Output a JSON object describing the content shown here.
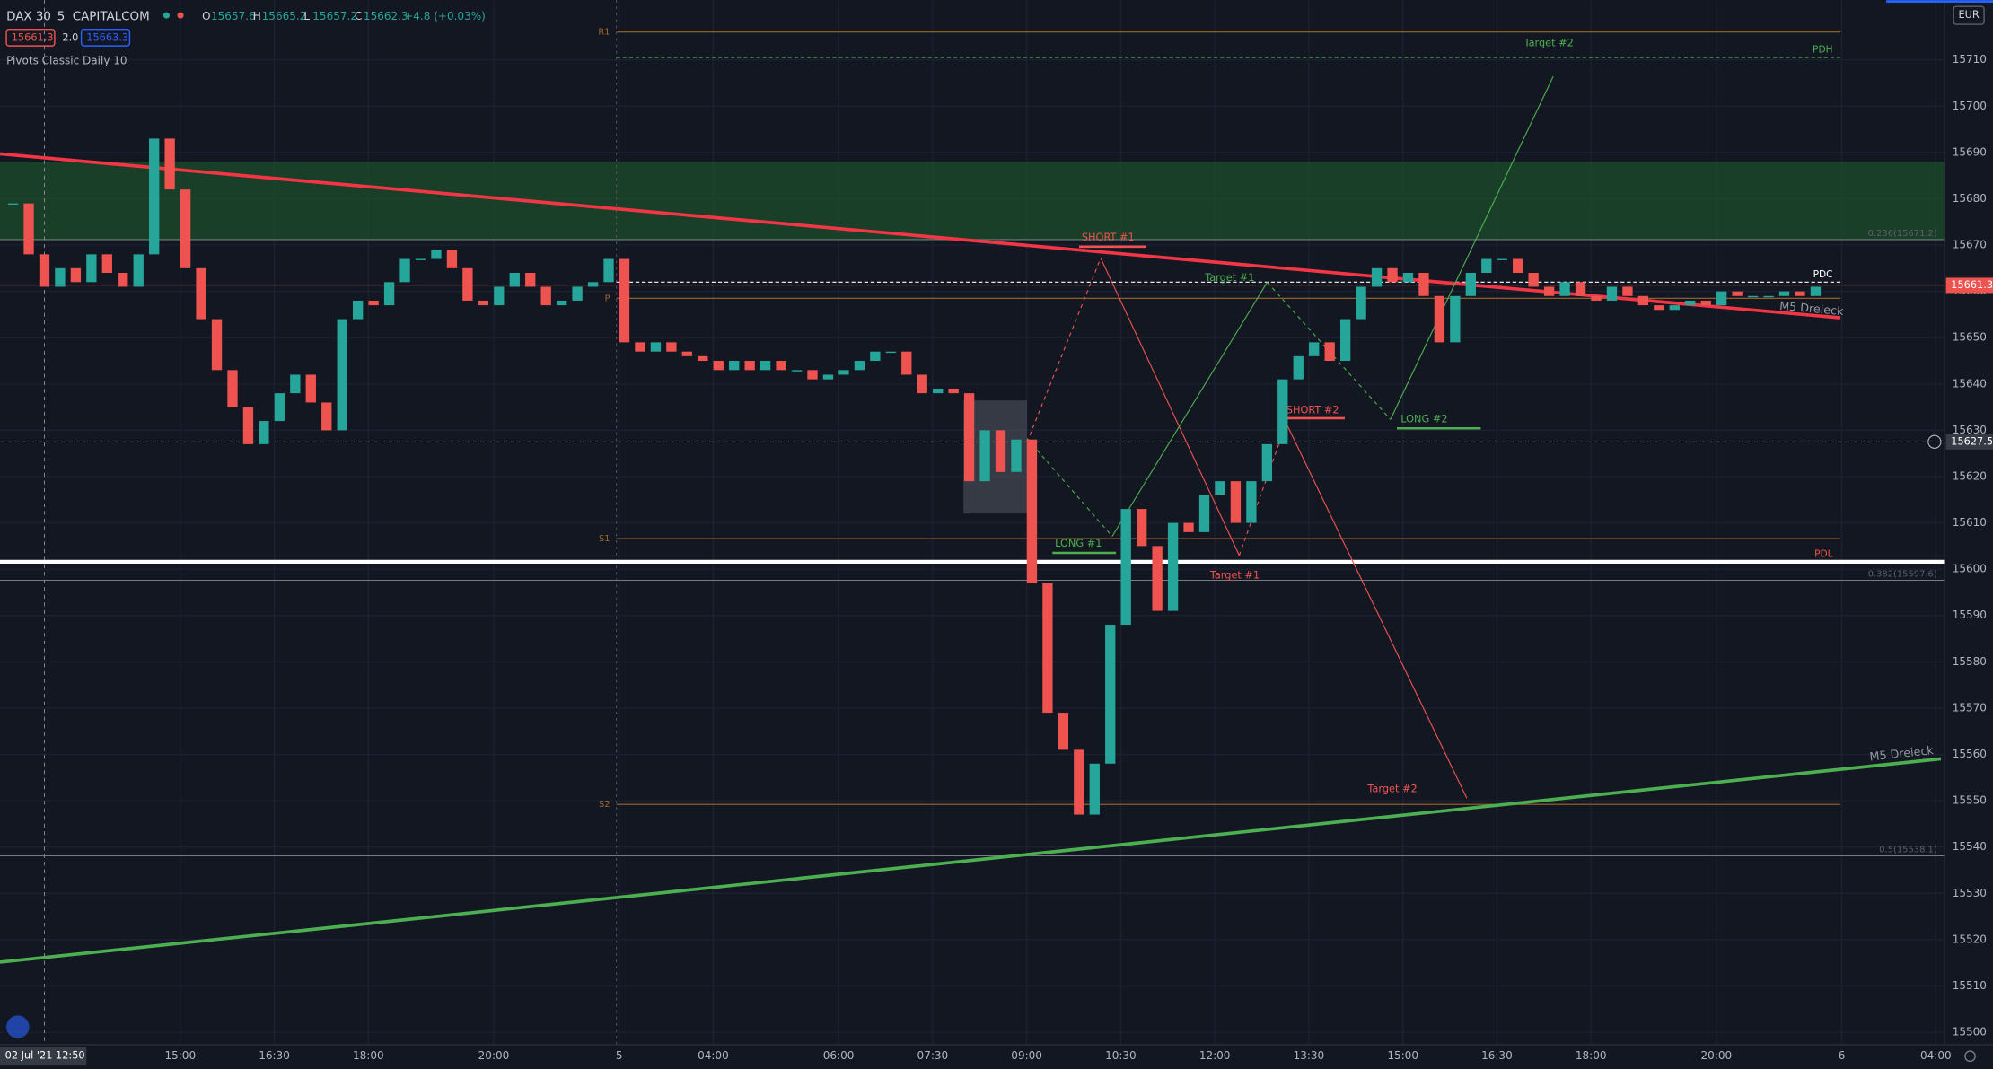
{
  "chart_data": {
    "type": "candlestick",
    "symbol": "DAX 30",
    "interval": "5",
    "exchange": "CAPITALCOM",
    "ohlc_legend": [
      {
        "label": "O",
        "value": 15657.6
      },
      {
        "label": "H",
        "value": 15665.2
      },
      {
        "label": "L",
        "value": 15657.2
      },
      {
        "label": "C",
        "value": 15662.3
      }
    ],
    "change": "+4.8 (+0.03%)",
    "bid": 15661.3,
    "spread": {
      "value": 2,
      "label": "2.0"
    },
    "ask": 15663.3,
    "indicator": "Pivots Classic Daily 10",
    "currency": "EUR",
    "last_price": 15661.3,
    "crosshair_price": 15627.5,
    "crosshair_x": {
      "value": 0,
      "label": "02 Jul '21 12:50"
    },
    "xlim": [
      -8.5,
      363.7
    ],
    "ylim": [
      15497.3,
      15722.9
    ],
    "xticks": [
      {
        "value": 26,
        "label": "15:00"
      },
      {
        "value": 44,
        "label": "16:30"
      },
      {
        "value": 62,
        "label": "18:00"
      },
      {
        "value": 86,
        "label": "20:00"
      },
      {
        "value": 110,
        "label": "5"
      },
      {
        "value": 128,
        "label": "04:00"
      },
      {
        "value": 152,
        "label": "06:00"
      },
      {
        "value": 170,
        "label": "07:30"
      },
      {
        "value": 188,
        "label": "09:00"
      },
      {
        "value": 206,
        "label": "10:30"
      },
      {
        "value": 224,
        "label": "12:00"
      },
      {
        "value": 242,
        "label": "13:30"
      },
      {
        "value": 260,
        "label": "15:00"
      },
      {
        "value": 278,
        "label": "16:30"
      },
      {
        "value": 296,
        "label": "18:00"
      },
      {
        "value": 320,
        "label": "20:00"
      },
      {
        "value": 344,
        "label": "6"
      },
      {
        "value": 362,
        "label": "04:00"
      }
    ],
    "yticks": [
      15500,
      15510,
      15520,
      15530,
      15540,
      15550,
      15560,
      15570,
      15580,
      15590,
      15600,
      15610,
      15620,
      15630,
      15640,
      15650,
      15660,
      15670,
      15680,
      15690,
      15700,
      15710
    ],
    "up_color": "#26a69a",
    "down_color": "#ef5350",
    "candles": {
      "x": [
        -6,
        -3,
        0,
        3,
        6,
        9,
        12,
        15,
        18,
        21,
        24,
        27,
        30,
        33,
        36,
        39,
        42,
        45,
        48,
        51,
        54,
        57,
        60,
        63,
        66,
        69,
        72,
        75,
        78,
        81,
        84,
        87,
        90,
        93,
        96,
        99,
        102,
        105,
        108,
        111,
        114,
        117,
        120,
        123,
        126,
        129,
        132,
        135,
        138,
        141,
        144,
        147,
        150,
        153,
        156,
        159,
        162,
        165,
        168,
        171,
        174,
        177,
        180,
        183,
        186,
        189,
        192,
        195,
        198,
        201,
        204,
        207,
        210,
        213,
        216,
        219,
        222,
        225,
        228,
        231,
        234,
        237,
        240,
        243,
        246,
        249,
        252,
        255,
        258,
        261,
        264,
        267,
        270,
        273,
        276,
        279,
        282,
        285,
        288,
        291,
        294,
        297,
        300,
        303,
        306,
        309,
        312,
        315,
        318,
        321,
        324,
        327,
        330,
        333,
        336,
        339
      ],
      "close": [
        15679,
        15668,
        15661,
        15665,
        15662,
        15668,
        15664,
        15661,
        15668,
        15693,
        15682,
        15665,
        15654,
        15643,
        15635,
        15627,
        15632,
        15638,
        15642,
        15636,
        15630,
        15654,
        15658,
        15657,
        15662,
        15667,
        15667,
        15669,
        15665,
        15658,
        15657,
        15661,
        15664,
        15661,
        15657,
        15658,
        15661,
        15662,
        15667,
        15649,
        15647,
        15649,
        15647,
        15646,
        15645,
        15643,
        15645,
        15643,
        15645,
        15643,
        15643,
        15641,
        15642,
        15643,
        15645,
        15647,
        15647,
        15642,
        15638,
        15639,
        15638,
        15619,
        15630,
        15621,
        15628,
        15597,
        15569,
        15561,
        15547,
        15558,
        15588,
        15613,
        15605,
        15591,
        15610,
        15608,
        15616,
        15619,
        15610,
        15619,
        15627,
        15641,
        15646,
        15649,
        15645,
        15654,
        15661,
        15665,
        15662,
        15664,
        15659,
        15649,
        15659,
        15664,
        15667,
        15667,
        15664,
        15661,
        15659,
        15662,
        15659,
        15658,
        15661,
        15659,
        15657,
        15656,
        15657,
        15658,
        15657,
        15660,
        15659,
        15659,
        15659,
        15660,
        15659,
        15661
      ]
    },
    "zone": [
      15671,
      15688
    ],
    "pivots": [
      {
        "label": "R1",
        "value": 15716
      },
      {
        "label": "P",
        "value": 15658.5
      },
      {
        "label": "S1",
        "value": 15606.6
      },
      {
        "label": "S2",
        "value": 15549.2
      }
    ],
    "levels": [
      {
        "label": "PDH",
        "value": 15710.5,
        "color": "#4caf50"
      },
      {
        "label": "PDC",
        "value": 15662,
        "color": "#ffffff"
      },
      {
        "label": "PDL",
        "value": 15601.6,
        "color": "#ef5350"
      }
    ],
    "fibs": [
      {
        "label": "0.236(15671.2)",
        "value": 15671.2
      },
      {
        "label": "0.382(15597.6)",
        "value": 15597.6
      },
      {
        "label": "0.5(15538.1)",
        "value": 15538.1
      }
    ],
    "annotations": [
      {
        "text": "SHORT #1",
        "color": "#ef5350"
      },
      {
        "text": "Target #1",
        "color": "#4caf50"
      },
      {
        "text": "LONG #1",
        "color": "#4caf50"
      },
      {
        "text": "Target #1",
        "color": "#ef5350"
      },
      {
        "text": "SHORT #2",
        "color": "#ef5350"
      },
      {
        "text": "LONG #2",
        "color": "#4caf50"
      },
      {
        "text": "Target #2",
        "color": "#4caf50"
      },
      {
        "text": "Target #2",
        "color": "#ef5350"
      }
    ],
    "trendline_labels": [
      "M5 Dreieck",
      "M5 Dreieck"
    ]
  }
}
